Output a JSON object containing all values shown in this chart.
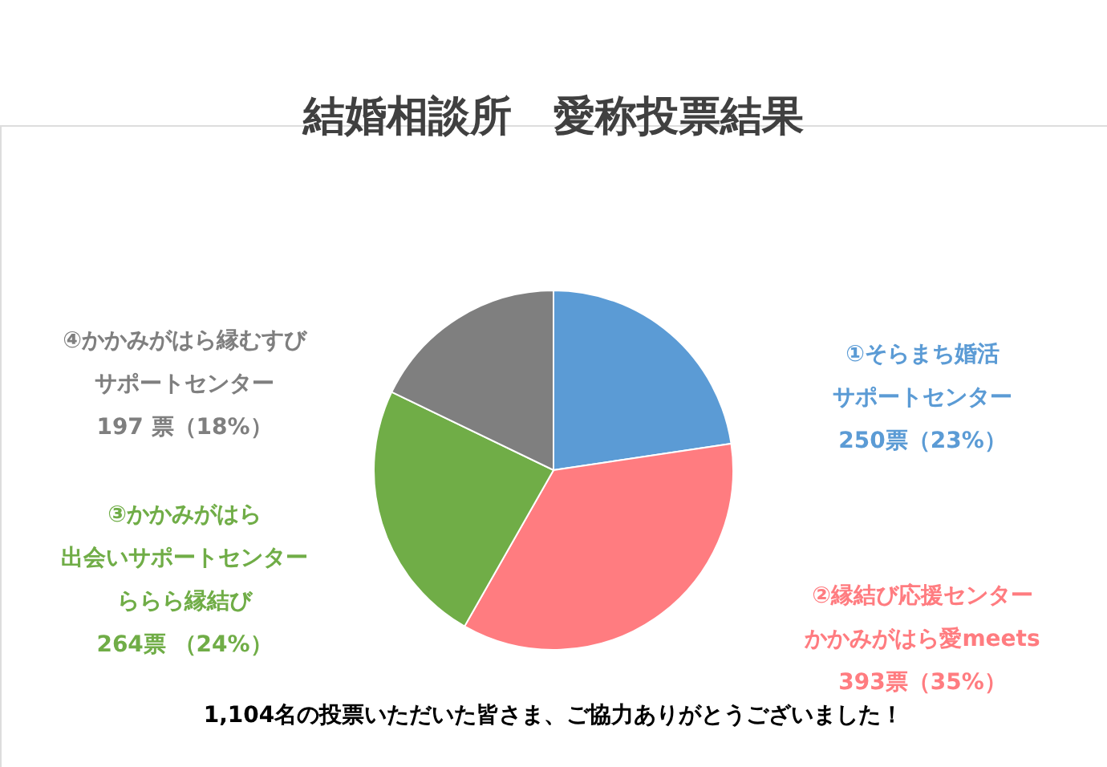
{
  "chart_data": {
    "type": "pie",
    "title": "結婚相談所　愛称投票結果",
    "categories": [
      "①そらまち婚活サポートセンター",
      "②縁結び応援センターかかみがはら愛meets",
      "③かかみがはら出会いサポートセンターららら縁結び",
      "④かかみがはら縁むすびサポートセンター"
    ],
    "values": [
      250,
      393,
      264,
      197
    ],
    "colors": [
      "#5b9bd5",
      "#ff7c80",
      "#70ad47",
      "#7f7f7f"
    ],
    "value_labels": [
      "250票（23%）",
      "393票（35%）",
      "264票 （24%）",
      "197 票（18%）"
    ],
    "annotations": [
      "1,104名の投票いただいた皆さま、ご協力ありがとうございました！"
    ]
  }
}
